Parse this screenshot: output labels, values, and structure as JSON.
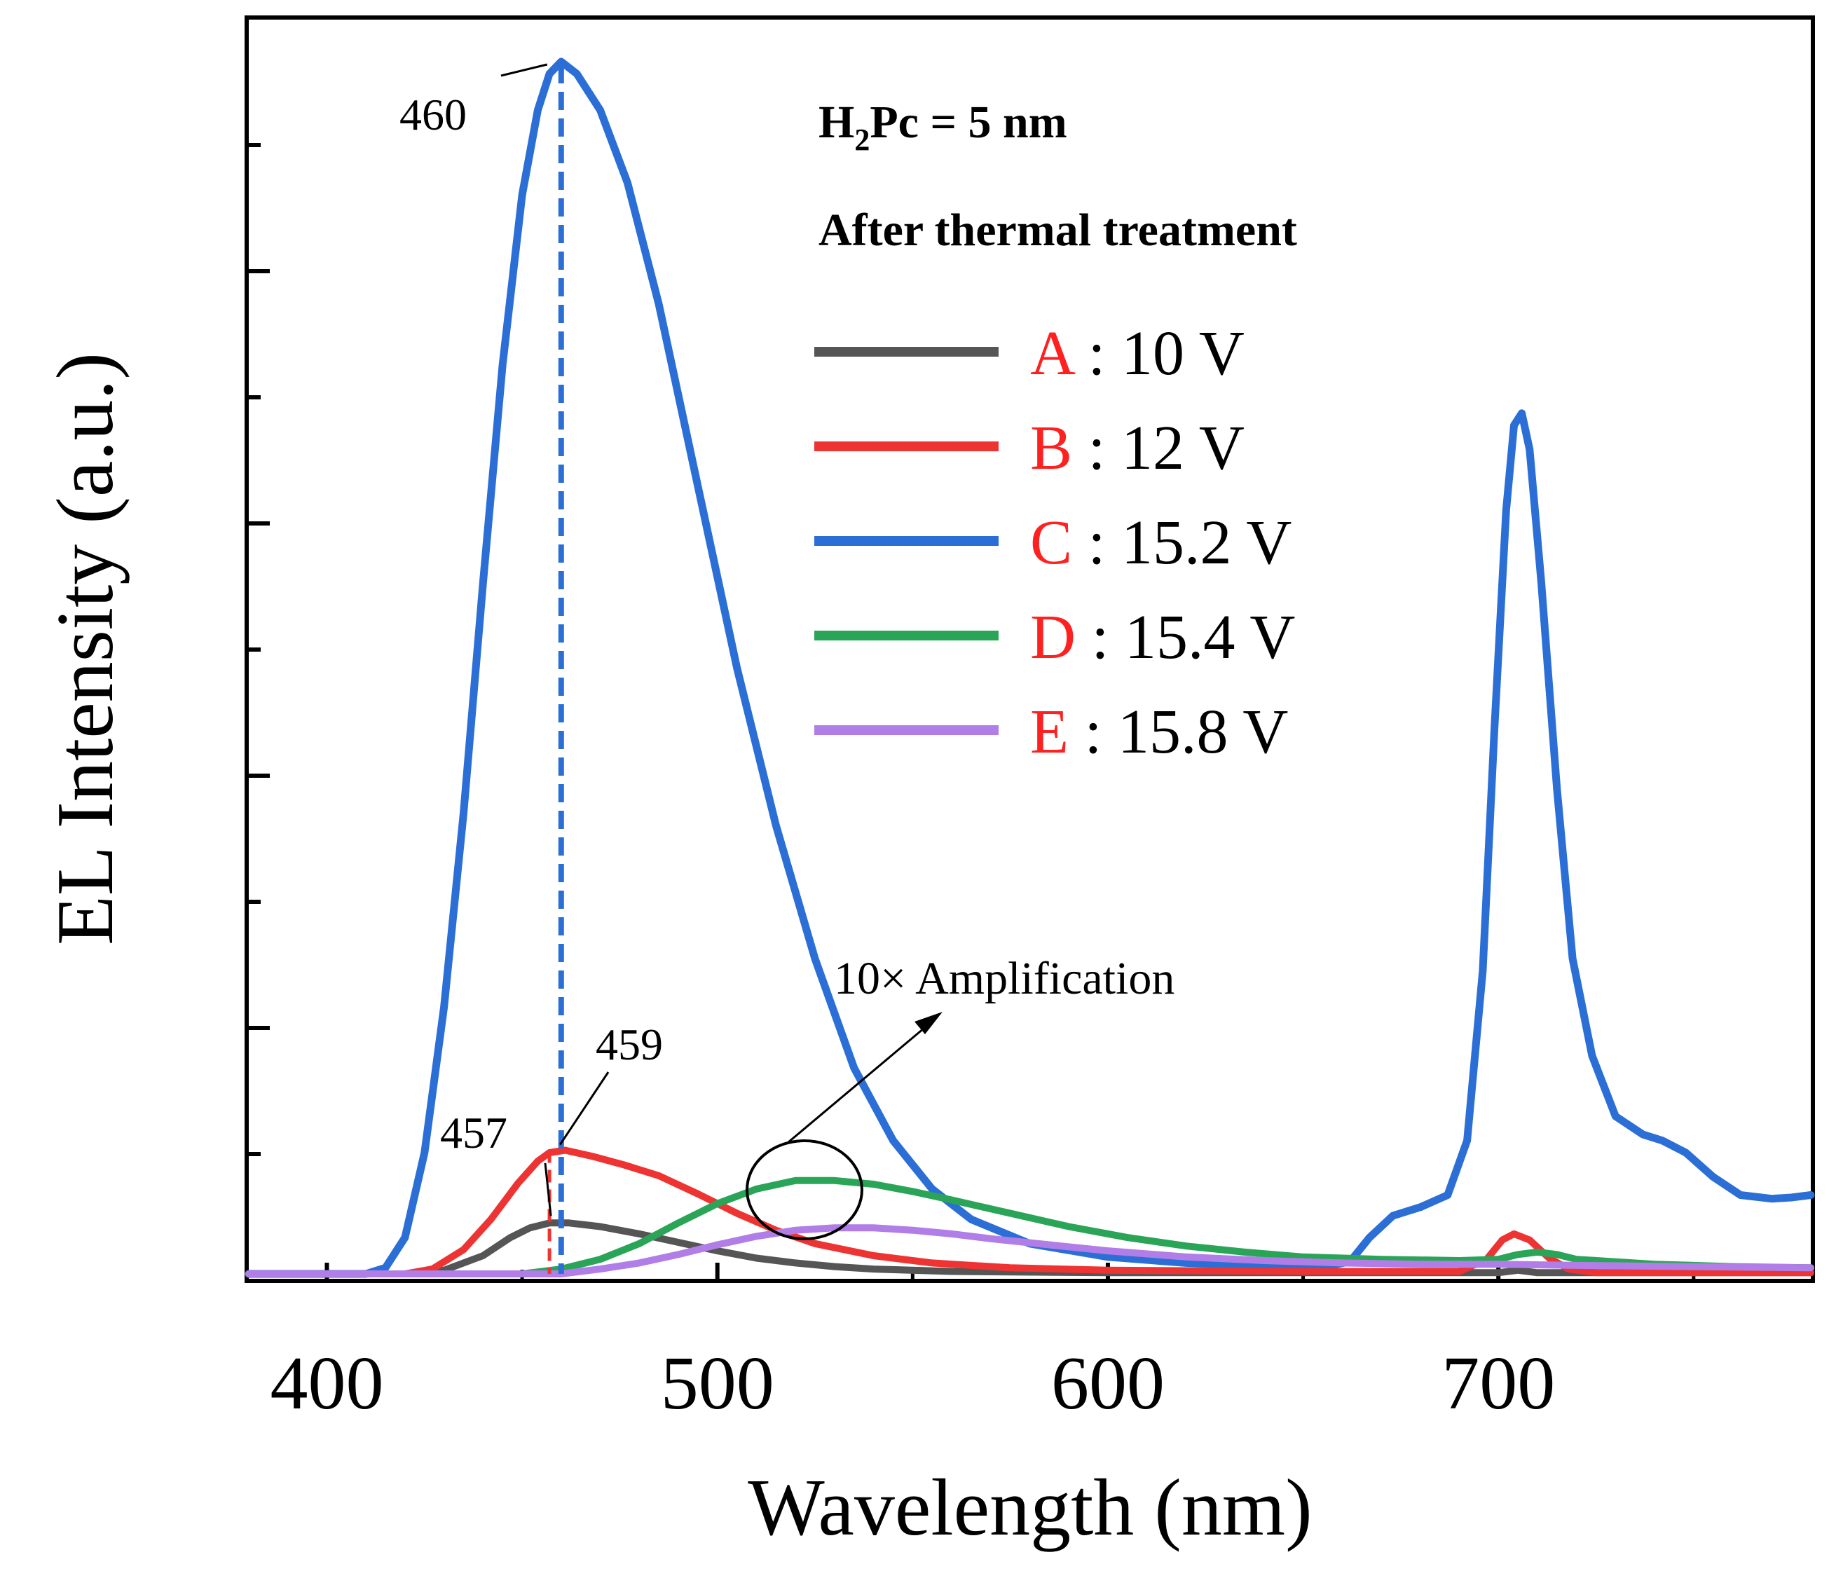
{
  "chart_data": {
    "type": "line",
    "title": "",
    "xlabel": "Wavelength (nm)",
    "ylabel": "EL Intensity (a.u.)",
    "xlim": [
      380,
      780
    ],
    "ylim": [
      0,
      1.0
    ],
    "x_ticks": [
      400,
      500,
      600,
      700
    ],
    "x_tick_labels": [
      "400",
      "500",
      "600",
      "700"
    ],
    "y_tick_labels_shown": false,
    "info_line1_prefix": "H",
    "info_line1_sub": "2",
    "info_line1_suffix": "Pc = 5 nm",
    "info_line2": "After thermal treatment",
    "legend_position": "top-right",
    "series": [
      {
        "name": "A",
        "label_letter": "A",
        "label_rest": " : 10 V",
        "color": "#555555",
        "points": [
          [
            380,
            0
          ],
          [
            420,
            0
          ],
          [
            430,
            0.003
          ],
          [
            440,
            0.015
          ],
          [
            447,
            0.03
          ],
          [
            452,
            0.038
          ],
          [
            457,
            0.042
          ],
          [
            462,
            0.042
          ],
          [
            470,
            0.039
          ],
          [
            480,
            0.033
          ],
          [
            490,
            0.026
          ],
          [
            500,
            0.019
          ],
          [
            510,
            0.013
          ],
          [
            520,
            0.009
          ],
          [
            530,
            0.006
          ],
          [
            540,
            0.004
          ],
          [
            560,
            0.002
          ],
          [
            600,
            0.001
          ],
          [
            650,
            0.001
          ],
          [
            700,
            0.001
          ],
          [
            705,
            0.003
          ],
          [
            710,
            0.001
          ],
          [
            780,
            0.001
          ]
        ]
      },
      {
        "name": "B",
        "label_letter": "B",
        "label_rest": " : 12 V",
        "color": "#ee3333",
        "points": [
          [
            380,
            0
          ],
          [
            420,
            0
          ],
          [
            427,
            0.004
          ],
          [
            435,
            0.02
          ],
          [
            442,
            0.045
          ],
          [
            449,
            0.075
          ],
          [
            454,
            0.093
          ],
          [
            457,
            0.1
          ],
          [
            461,
            0.102
          ],
          [
            468,
            0.097
          ],
          [
            476,
            0.09
          ],
          [
            485,
            0.081
          ],
          [
            495,
            0.066
          ],
          [
            505,
            0.05
          ],
          [
            515,
            0.036
          ],
          [
            525,
            0.025
          ],
          [
            540,
            0.015
          ],
          [
            555,
            0.009
          ],
          [
            575,
            0.005
          ],
          [
            600,
            0.003
          ],
          [
            650,
            0.002
          ],
          [
            690,
            0.002
          ],
          [
            697,
            0.012
          ],
          [
            701,
            0.028
          ],
          [
            704,
            0.033
          ],
          [
            708,
            0.028
          ],
          [
            713,
            0.013
          ],
          [
            718,
            0.004
          ],
          [
            725,
            0.001
          ],
          [
            780,
            0.001
          ]
        ]
      },
      {
        "name": "C",
        "label_letter": "C",
        "label_rest": " : 15.2 V",
        "color": "#2b6fd6",
        "points": [
          [
            380,
            0
          ],
          [
            410,
            0
          ],
          [
            415,
            0.005
          ],
          [
            420,
            0.03
          ],
          [
            425,
            0.1
          ],
          [
            430,
            0.22
          ],
          [
            435,
            0.38
          ],
          [
            440,
            0.57
          ],
          [
            445,
            0.75
          ],
          [
            450,
            0.89
          ],
          [
            454,
            0.96
          ],
          [
            457,
            0.99
          ],
          [
            460,
            1.0
          ],
          [
            464,
            0.99
          ],
          [
            470,
            0.96
          ],
          [
            477,
            0.9
          ],
          [
            485,
            0.8
          ],
          [
            495,
            0.65
          ],
          [
            505,
            0.5
          ],
          [
            515,
            0.37
          ],
          [
            525,
            0.26
          ],
          [
            535,
            0.17
          ],
          [
            545,
            0.11
          ],
          [
            555,
            0.07
          ],
          [
            565,
            0.045
          ],
          [
            580,
            0.025
          ],
          [
            600,
            0.014
          ],
          [
            620,
            0.009
          ],
          [
            640,
            0.007
          ],
          [
            655,
            0.006
          ],
          [
            662,
            0.01
          ],
          [
            667,
            0.03
          ],
          [
            673,
            0.048
          ],
          [
            680,
            0.055
          ],
          [
            687,
            0.065
          ],
          [
            692,
            0.11
          ],
          [
            696,
            0.25
          ],
          [
            699,
            0.45
          ],
          [
            702,
            0.63
          ],
          [
            704,
            0.7
          ],
          [
            706,
            0.71
          ],
          [
            708,
            0.68
          ],
          [
            711,
            0.57
          ],
          [
            715,
            0.4
          ],
          [
            719,
            0.26
          ],
          [
            724,
            0.18
          ],
          [
            730,
            0.13
          ],
          [
            737,
            0.115
          ],
          [
            742,
            0.11
          ],
          [
            748,
            0.1
          ],
          [
            755,
            0.08
          ],
          [
            762,
            0.065
          ],
          [
            770,
            0.062
          ],
          [
            775,
            0.063
          ],
          [
            780,
            0.065
          ]
        ]
      },
      {
        "name": "D",
        "label_letter": "D",
        "label_rest": " : 15.4 V",
        "color": "#2aa558",
        "points": [
          [
            380,
            0
          ],
          [
            450,
            0
          ],
          [
            460,
            0.004
          ],
          [
            470,
            0.012
          ],
          [
            480,
            0.025
          ],
          [
            490,
            0.042
          ],
          [
            500,
            0.058
          ],
          [
            510,
            0.07
          ],
          [
            520,
            0.077
          ],
          [
            530,
            0.077
          ],
          [
            540,
            0.074
          ],
          [
            550,
            0.068
          ],
          [
            560,
            0.061
          ],
          [
            575,
            0.05
          ],
          [
            590,
            0.039
          ],
          [
            605,
            0.03
          ],
          [
            620,
            0.023
          ],
          [
            635,
            0.018
          ],
          [
            650,
            0.014
          ],
          [
            670,
            0.012
          ],
          [
            690,
            0.011
          ],
          [
            700,
            0.012
          ],
          [
            705,
            0.016
          ],
          [
            710,
            0.018
          ],
          [
            715,
            0.016
          ],
          [
            720,
            0.012
          ],
          [
            740,
            0.008
          ],
          [
            760,
            0.006
          ],
          [
            780,
            0.005
          ]
        ]
      },
      {
        "name": "E",
        "label_letter": "E",
        "label_rest": " : 15.8 V",
        "color": "#b07ee6",
        "points": [
          [
            380,
            0
          ],
          [
            460,
            0
          ],
          [
            470,
            0.004
          ],
          [
            480,
            0.009
          ],
          [
            490,
            0.016
          ],
          [
            500,
            0.024
          ],
          [
            510,
            0.031
          ],
          [
            520,
            0.036
          ],
          [
            530,
            0.038
          ],
          [
            540,
            0.038
          ],
          [
            550,
            0.036
          ],
          [
            560,
            0.033
          ],
          [
            570,
            0.029
          ],
          [
            585,
            0.024
          ],
          [
            600,
            0.019
          ],
          [
            620,
            0.014
          ],
          [
            640,
            0.011
          ],
          [
            660,
            0.009
          ],
          [
            680,
            0.008
          ],
          [
            700,
            0.008
          ],
          [
            720,
            0.007
          ],
          [
            750,
            0.006
          ],
          [
            780,
            0.005
          ]
        ]
      }
    ],
    "annotations": [
      {
        "text": "460",
        "x": 460,
        "y": 1.0
      },
      {
        "text": "459",
        "x": 459,
        "y": 0.102
      },
      {
        "text": "457",
        "x": 457,
        "y": 0.042
      },
      {
        "text": "10× Amplification",
        "x": 520,
        "y": 0.077
      }
    ]
  }
}
